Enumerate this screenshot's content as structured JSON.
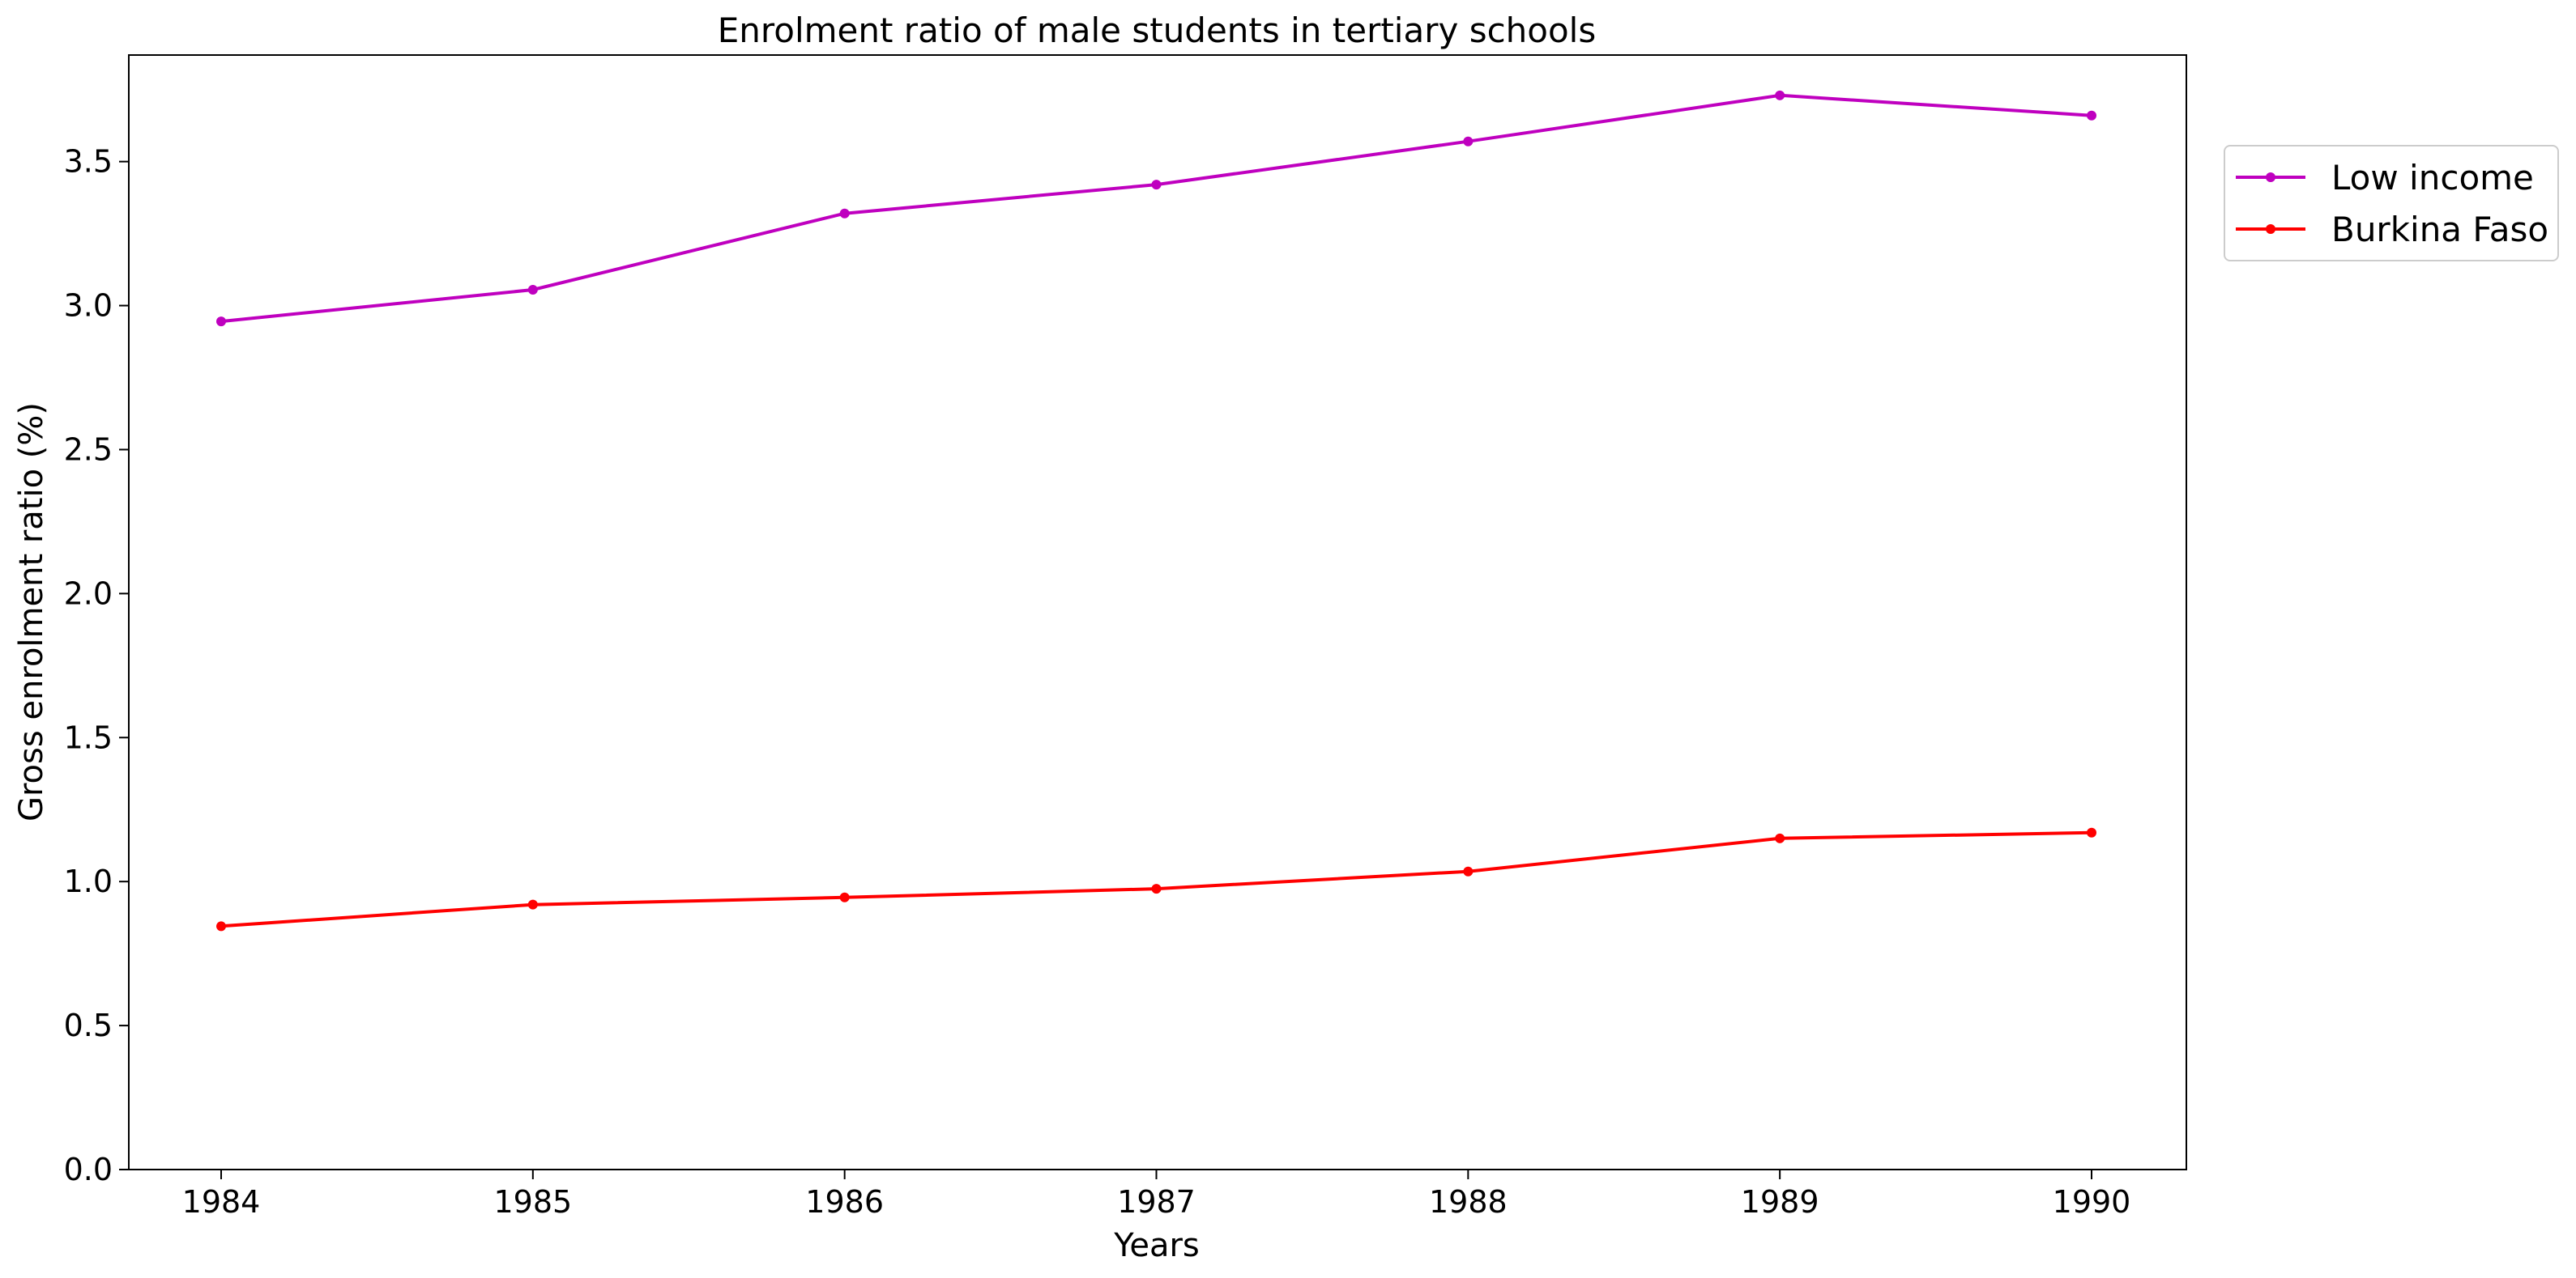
{
  "chart_data": {
    "type": "line",
    "title": "Enrolment ratio of male students in tertiary schools",
    "xlabel": "Years",
    "ylabel": "Gross enrolment ratio (%)",
    "x": [
      1984,
      1985,
      1986,
      1987,
      1988,
      1989,
      1990
    ],
    "x_tick_labels": [
      "1984",
      "1985",
      "1986",
      "1987",
      "1988",
      "1989",
      "1990"
    ],
    "ylim": [
      0,
      3.87
    ],
    "y_ticks": [
      0.0,
      0.5,
      1.0,
      1.5,
      2.0,
      2.5,
      3.0,
      3.5
    ],
    "y_tick_labels": [
      "0.0",
      "0.5",
      "1.0",
      "1.5",
      "2.0",
      "2.5",
      "3.0",
      "3.5"
    ],
    "grid": false,
    "legend_position": "outside-top-right",
    "series": [
      {
        "name": "Low income",
        "color": "#bf00bf",
        "marker": "circle",
        "values": [
          2.945,
          3.055,
          3.32,
          3.42,
          3.57,
          3.73,
          3.66
        ]
      },
      {
        "name": "Burkina Faso",
        "color": "#ff0000",
        "marker": "circle",
        "values": [
          0.845,
          0.92,
          0.945,
          0.975,
          1.035,
          1.15,
          1.17
        ]
      }
    ]
  }
}
